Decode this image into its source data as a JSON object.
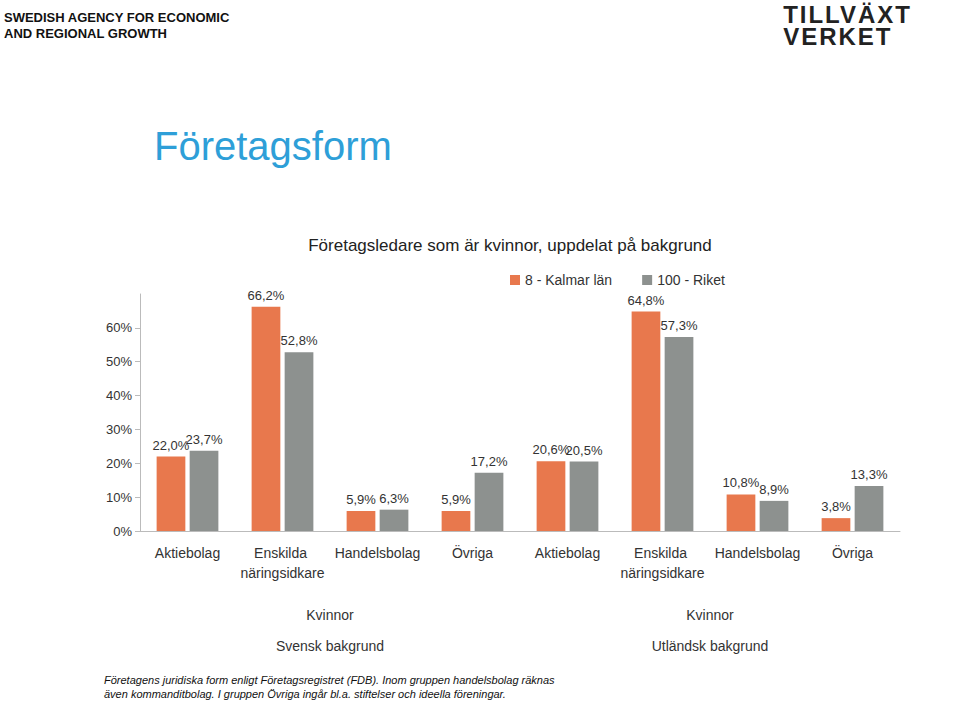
{
  "page": {
    "agency": [
      "SWEDISH AGENCY FOR ECONOMIC",
      "AND REGIONAL GROWTH"
    ],
    "logo": [
      "TILLVÄXT",
      "VERKET"
    ],
    "heading": "Företagsform",
    "footnote": [
      "Företagens juridiska form enligt Företagsregistret (FDB). Inom gruppen handelsbolag räknas",
      "även kommanditbolag. I gruppen Övriga ingår bl.a. stiftelser och ideella föreningar."
    ]
  },
  "chart_data": {
    "type": "bar",
    "title": "Företagsledare som är kvinnor, uppdelat på bakgrund",
    "categories": [
      "Aktiebolag",
      "Enskilda näringsidkare",
      "Handelsbolag",
      "Övriga",
      "Aktiebolag",
      "Enskilda näringsidkare",
      "Handelsbolag",
      "Övriga"
    ],
    "groups": [
      {
        "labels": [
          "Kvinnor",
          "Svensk bakgrund"
        ]
      },
      {
        "labels": [
          "Kvinnor",
          "Utländsk bakgrund"
        ]
      }
    ],
    "series": [
      {
        "name": "8 - Kalmar län",
        "color": "#e8784d",
        "values": [
          22.0,
          66.2,
          5.9,
          5.9,
          20.6,
          64.8,
          10.8,
          3.8
        ],
        "value_labels": [
          "22,0%",
          "66,2%",
          "5,9%",
          "5,9%",
          "20,6%",
          "64,8%",
          "10,8%",
          "3,8%"
        ]
      },
      {
        "name": "100 - Riket",
        "color": "#8d918f",
        "values": [
          23.7,
          52.8,
          6.3,
          17.2,
          20.5,
          57.3,
          8.9,
          13.3
        ],
        "value_labels": [
          "23,7%",
          "52,8%",
          "6,3%",
          "17,2%",
          "20,5%",
          "57,3%",
          "8,9%",
          "13,3%"
        ]
      }
    ],
    "ylim": [
      0,
      70
    ],
    "yticks": [
      {
        "value": 0,
        "label": "0%"
      },
      {
        "value": 10,
        "label": "10%"
      },
      {
        "value": 20,
        "label": "20%"
      },
      {
        "value": 30,
        "label": "30%"
      },
      {
        "value": 40,
        "label": "40%"
      },
      {
        "value": 50,
        "label": "50%"
      },
      {
        "value": 60,
        "label": "60%"
      }
    ],
    "grid": false,
    "legend": "top",
    "data_labels": true
  }
}
